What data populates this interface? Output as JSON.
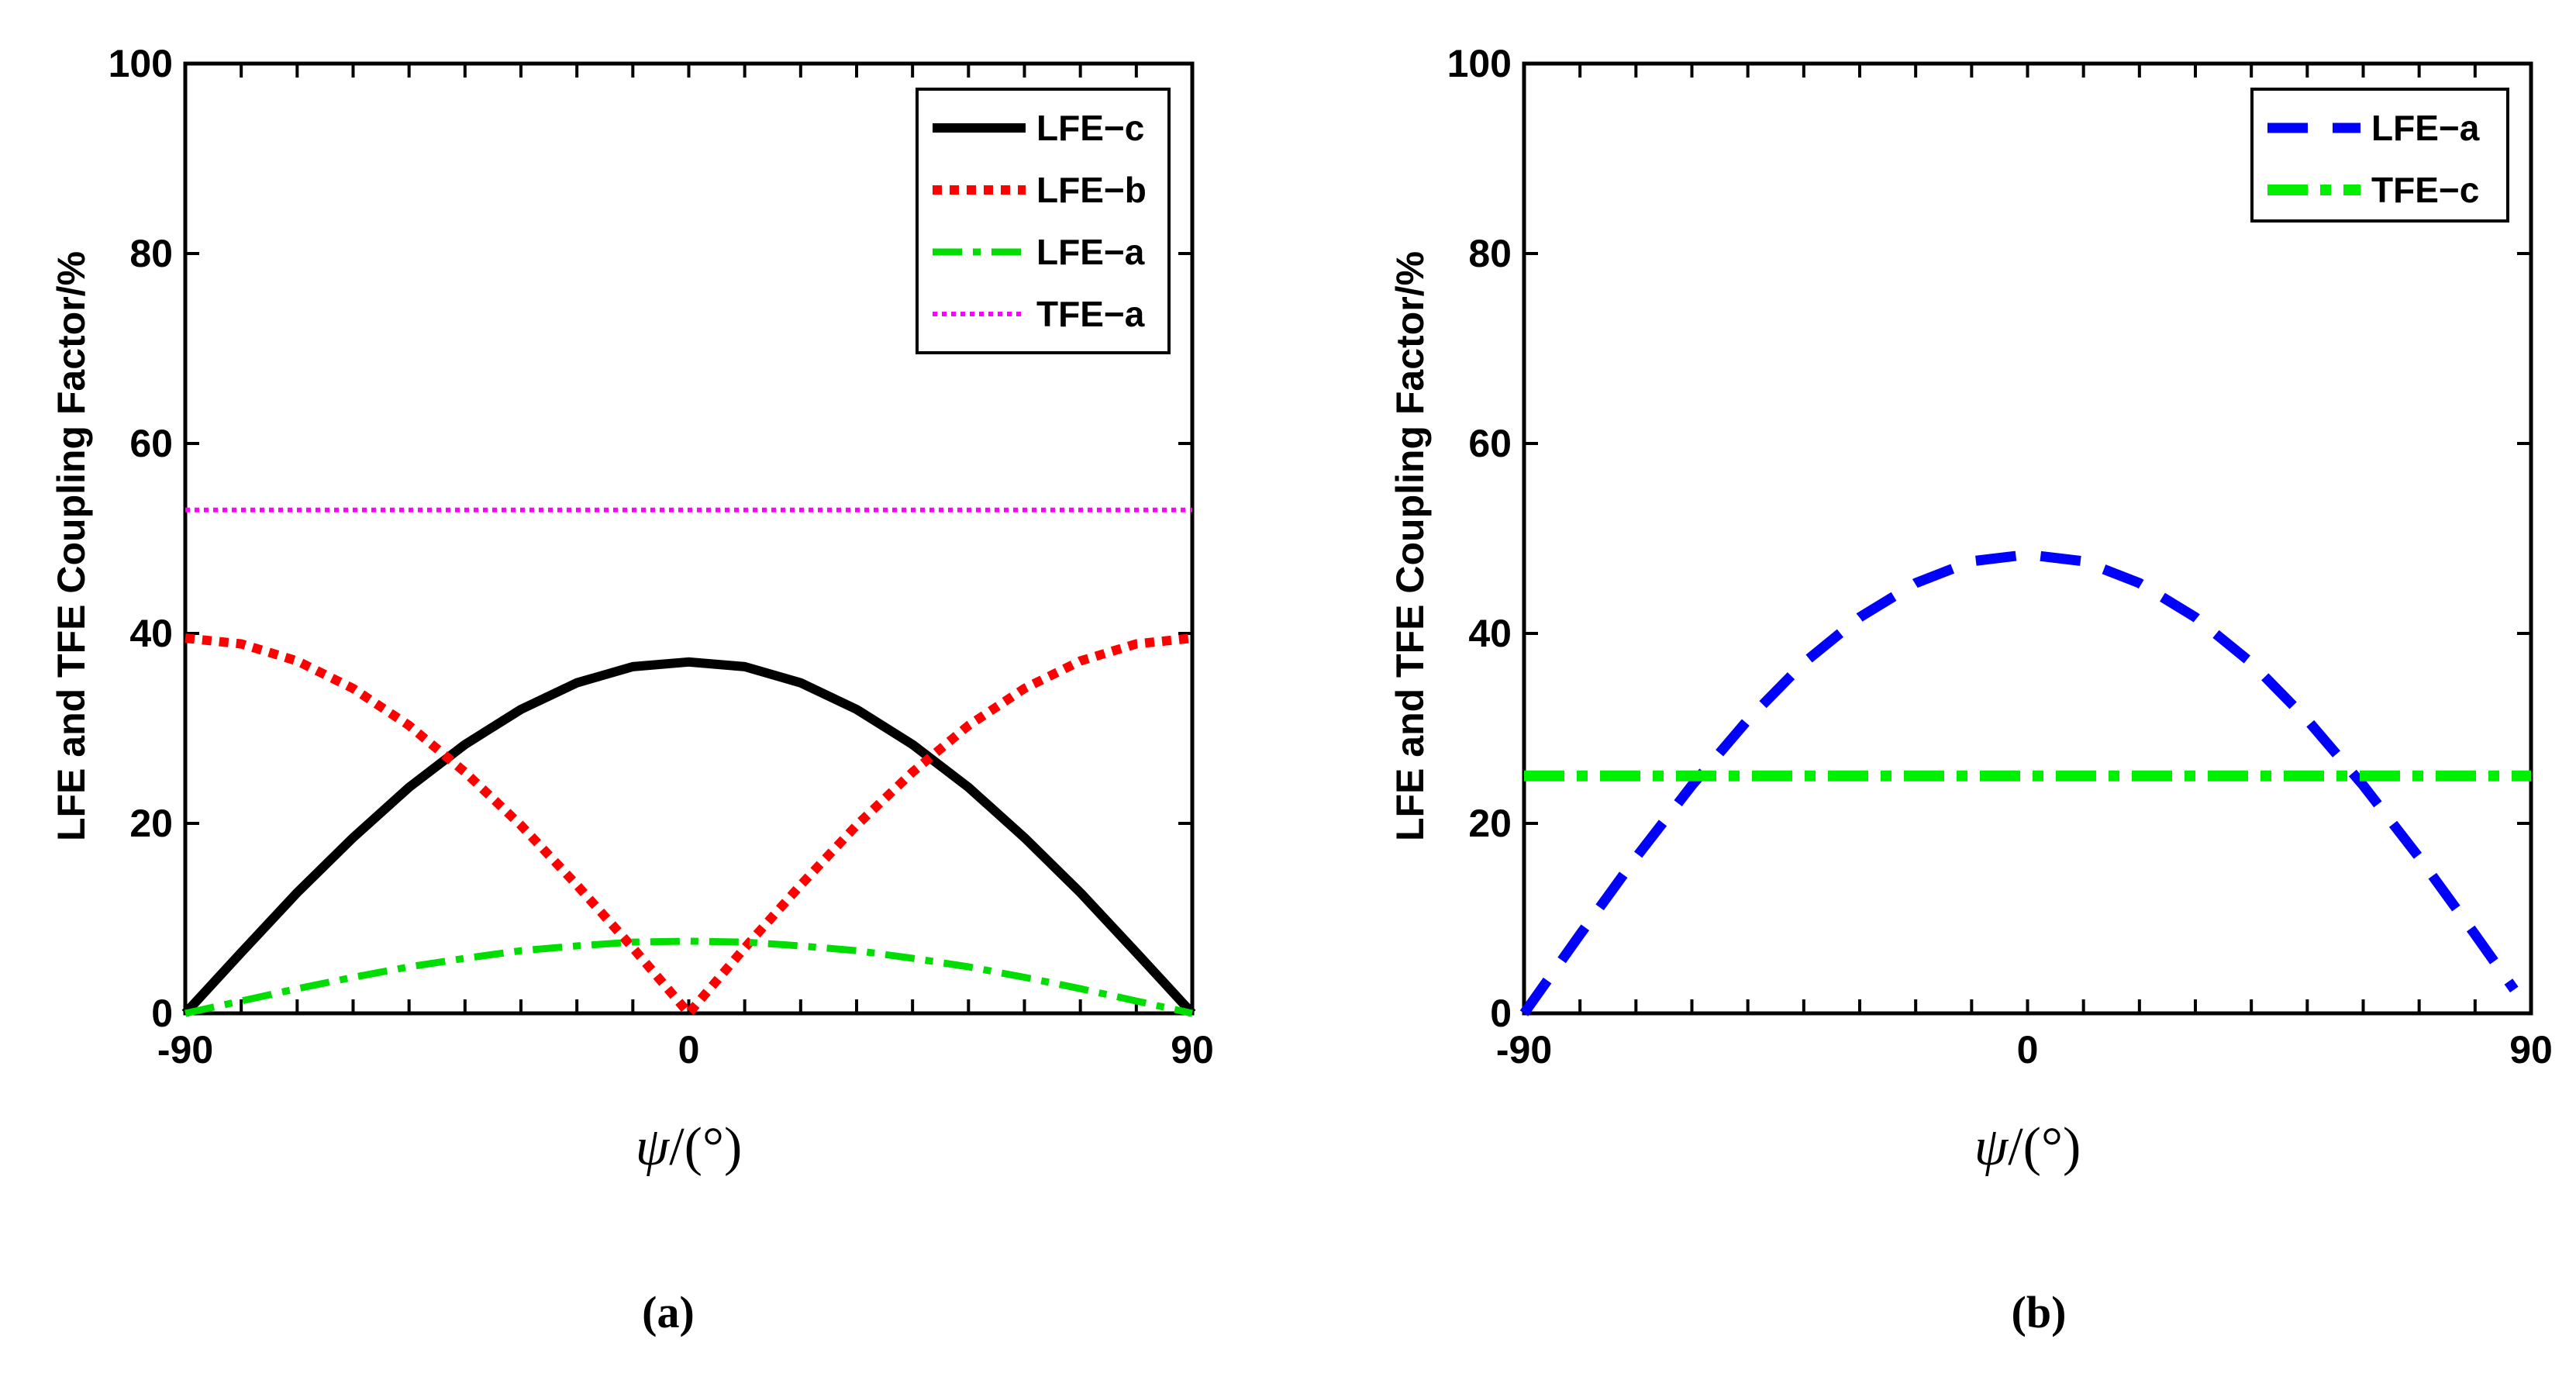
{
  "chart_data": [
    {
      "type": "line",
      "panel_label": "(a)",
      "xlabel_symbol": "ψ",
      "xlabel_unit": "/(°)",
      "ylabel": "LFE and TFE Coupling Factor/%",
      "xlim": [
        -90,
        90
      ],
      "ylim": [
        0,
        100
      ],
      "xticks": [
        -90,
        0,
        90
      ],
      "xtick_labels": [
        "-90",
        "0",
        "90"
      ],
      "yticks": [
        0,
        20,
        40,
        60,
        80,
        100
      ],
      "ytick_labels": [
        "0",
        "20",
        "40",
        "60",
        "80",
        "100"
      ],
      "legend_position": "top-right",
      "series": [
        {
          "name": "LFE−c",
          "color": "#000000",
          "style": "solid",
          "x": [
            -90,
            -80,
            -70,
            -60,
            -50,
            -40,
            -30,
            -20,
            -10,
            0,
            10,
            20,
            30,
            40,
            50,
            60,
            70,
            80,
            90
          ],
          "y": [
            0,
            6.4,
            12.7,
            18.5,
            23.8,
            28.3,
            32.0,
            34.8,
            36.5,
            37.0,
            36.5,
            34.8,
            32.0,
            28.3,
            23.8,
            18.5,
            12.7,
            6.4,
            0
          ]
        },
        {
          "name": "LFE−b",
          "color": "#ff0000",
          "style": "dotted-thick",
          "x": [
            -90,
            -80,
            -70,
            -60,
            -50,
            -40,
            -30,
            -20,
            -10,
            0,
            10,
            20,
            30,
            40,
            50,
            60,
            70,
            80,
            90
          ],
          "y": [
            39.5,
            38.9,
            37.1,
            34.2,
            30.3,
            25.4,
            19.8,
            13.5,
            6.9,
            0,
            6.9,
            13.5,
            19.8,
            25.4,
            30.3,
            34.2,
            37.1,
            38.9,
            39.5
          ]
        },
        {
          "name": "LFE−a",
          "color": "#00dd00",
          "style": "dashdot",
          "x": [
            -90,
            -80,
            -70,
            -60,
            -50,
            -40,
            -30,
            -20,
            -10,
            0,
            10,
            20,
            30,
            40,
            50,
            60,
            70,
            80,
            90
          ],
          "y": [
            0,
            1.3,
            2.6,
            3.8,
            4.9,
            5.8,
            6.6,
            7.1,
            7.5,
            7.6,
            7.5,
            7.1,
            6.6,
            5.8,
            4.9,
            3.8,
            2.6,
            1.3,
            0
          ]
        },
        {
          "name": "TFE−a",
          "color": "#ff00ff",
          "style": "dotted-thin",
          "x": [
            -90,
            90
          ],
          "y": [
            53,
            53
          ]
        }
      ]
    },
    {
      "type": "line",
      "panel_label": "(b)",
      "xlabel_symbol": "ψ",
      "xlabel_unit": "/(°)",
      "ylabel": "LFE and TFE Coupling Factor/%",
      "xlim": [
        -90,
        90
      ],
      "ylim": [
        0,
        100
      ],
      "xticks": [
        -90,
        0,
        90
      ],
      "xtick_labels": [
        "-90",
        "0",
        "90"
      ],
      "yticks": [
        0,
        20,
        40,
        60,
        80,
        100
      ],
      "ytick_labels": [
        "0",
        "20",
        "40",
        "60",
        "80",
        "100"
      ],
      "legend_position": "top-right",
      "series": [
        {
          "name": "LFE−a",
          "color": "#0000ff",
          "style": "dashed",
          "x": [
            -90,
            -80,
            -70,
            -60,
            -50,
            -40,
            -30,
            -20,
            -10,
            0,
            10,
            20,
            30,
            40,
            50,
            60,
            70,
            80,
            87
          ],
          "y": [
            0,
            8.3,
            16.4,
            24.0,
            30.9,
            36.9,
            41.7,
            45.3,
            47.6,
            48.3,
            47.6,
            45.3,
            41.7,
            36.9,
            30.9,
            24.0,
            16.4,
            8.3,
            2.5
          ]
        },
        {
          "name": "TFE−c",
          "color": "#00ee00",
          "style": "dashdot-thick",
          "x": [
            -90,
            90
          ],
          "y": [
            25,
            25
          ]
        }
      ]
    }
  ]
}
